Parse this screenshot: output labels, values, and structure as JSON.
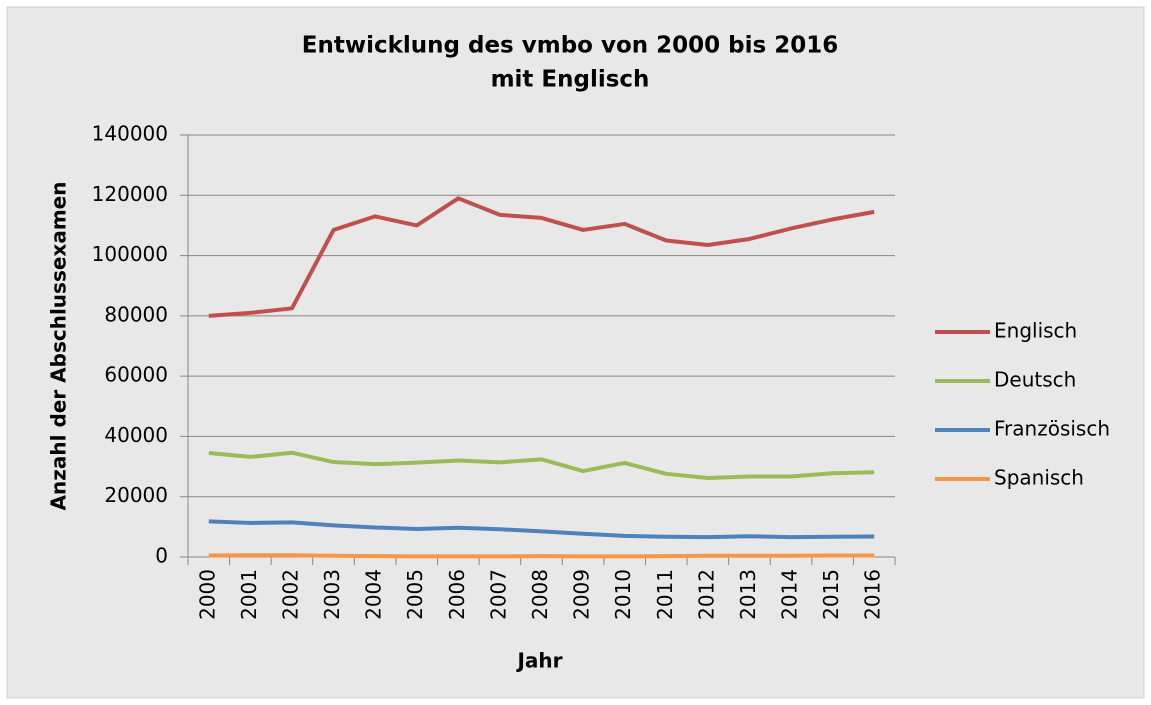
{
  "chart_data": {
    "type": "line",
    "title": [
      "Entwicklung des vmbo von 2000 bis 2016",
      "mit Englisch"
    ],
    "x_label": "Jahr",
    "y_label": "Anzahl der Abschlussexamen",
    "categories": [
      "2000",
      "2001",
      "2002",
      "2003",
      "2004",
      "2005",
      "2006",
      "2007",
      "2008",
      "2009",
      "2010",
      "2011",
      "2012",
      "2013",
      "2014",
      "2015",
      "2016"
    ],
    "series": [
      {
        "name": "Englisch",
        "color": "#c0504d",
        "values": [
          80000,
          81000,
          82500,
          108500,
          113000,
          110000,
          119000,
          113500,
          112500,
          108500,
          110500,
          105000,
          103500,
          105500,
          109000,
          112000,
          114500
        ]
      },
      {
        "name": "Deutsch",
        "color": "#9bbb59",
        "values": [
          34500,
          33200,
          34600,
          31500,
          30800,
          31300,
          32000,
          31400,
          32400,
          28500,
          31200,
          27600,
          26200,
          26700,
          26700,
          27800,
          28100
        ]
      },
      {
        "name": "Französisch",
        "color": "#4f81bd",
        "values": [
          11800,
          11300,
          11500,
          10500,
          9800,
          9300,
          9700,
          9200,
          8500,
          7700,
          7000,
          6700,
          6600,
          6900,
          6600,
          6700,
          6800
        ]
      },
      {
        "name": "Spanisch",
        "color": "#f79646",
        "values": [
          500,
          600,
          600,
          400,
          300,
          200,
          200,
          200,
          300,
          200,
          200,
          300,
          400,
          400,
          400,
          500,
          500
        ]
      }
    ],
    "ylim": [
      0,
      140000
    ],
    "yticks": [
      0,
      20000,
      40000,
      60000,
      80000,
      100000,
      120000,
      140000
    ],
    "grid": true,
    "legend": "right"
  }
}
